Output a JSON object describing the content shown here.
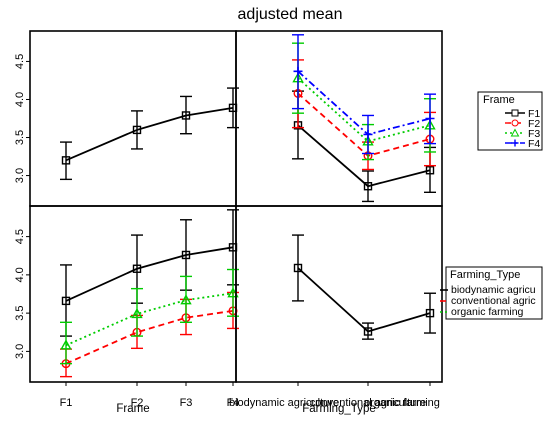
{
  "title": "adjusted mean",
  "colors": {
    "black": "#000000",
    "red": "#ff0000",
    "green": "#00cc00",
    "blue": "#0000ff"
  },
  "chart_data": [
    {
      "type": "line",
      "x": [
        "F1",
        "F2",
        "F3",
        "F4"
      ],
      "ylim": [
        2.6,
        4.9
      ],
      "yticks": [
        "3.0",
        "3.5",
        "4.0",
        "4.5"
      ],
      "series": [
        {
          "values": [
            3.2,
            3.6,
            3.79,
            3.89
          ],
          "lower": [
            2.95,
            3.35,
            3.55,
            3.63
          ],
          "upper": [
            3.44,
            3.85,
            4.04,
            4.15
          ],
          "color": "#000000",
          "marker": "square",
          "line": "solid"
        }
      ]
    },
    {
      "type": "line",
      "x": [
        "biodynamic agriculture",
        "conventional agriculture",
        "organic farming"
      ],
      "ylim": [
        2.6,
        4.9
      ],
      "legend": {
        "title": "Frame",
        "position": "right"
      },
      "series": [
        {
          "name": "F1",
          "values": [
            3.66,
            2.86,
            3.07
          ],
          "lower": [
            3.22,
            2.66,
            2.78
          ],
          "upper": [
            4.11,
            3.06,
            3.37
          ],
          "color": "#000000",
          "marker": "square",
          "line": "solid"
        },
        {
          "name": "F2",
          "values": [
            4.08,
            3.26,
            3.48
          ],
          "lower": [
            3.63,
            3.08,
            3.13
          ],
          "upper": [
            4.52,
            3.44,
            3.83
          ],
          "color": "#ff0000",
          "marker": "circle",
          "line": "dashed"
        },
        {
          "name": "F3",
          "values": [
            4.28,
            3.45,
            3.66
          ],
          "lower": [
            3.82,
            3.21,
            3.31
          ],
          "upper": [
            4.74,
            3.67,
            4.01
          ],
          "color": "#00cc00",
          "marker": "triangle",
          "line": "dotted"
        },
        {
          "name": "F4",
          "values": [
            4.37,
            3.54,
            3.75
          ],
          "lower": [
            3.88,
            3.29,
            3.42
          ],
          "upper": [
            4.85,
            3.79,
            4.07
          ],
          "color": "#0000ff",
          "marker": "plus",
          "line": "dotdash"
        }
      ]
    },
    {
      "type": "line",
      "x": [
        "F1",
        "F2",
        "F3",
        "F4"
      ],
      "xlabel": "Frame",
      "ylim": [
        2.6,
        4.9
      ],
      "yticks": [
        "3.0",
        "3.5",
        "4.0",
        "4.5"
      ],
      "series": [
        {
          "values": [
            3.66,
            4.08,
            4.26,
            4.36
          ],
          "lower": [
            3.2,
            3.63,
            3.8,
            3.87
          ],
          "upper": [
            4.13,
            4.52,
            4.72,
            4.85
          ],
          "color": "#000000",
          "marker": "square",
          "line": "solid"
        },
        {
          "values": [
            2.84,
            3.25,
            3.44,
            3.53
          ],
          "lower": [
            2.67,
            3.04,
            3.22,
            3.3
          ],
          "upper": [
            3.03,
            3.47,
            3.68,
            3.77
          ],
          "color": "#ff0000",
          "marker": "circle",
          "line": "dashed"
        },
        {
          "values": [
            3.08,
            3.49,
            3.67,
            3.76
          ],
          "lower": [
            2.84,
            3.2,
            3.38,
            3.46
          ],
          "upper": [
            3.38,
            3.82,
            3.98,
            4.07
          ],
          "color": "#00cc00",
          "marker": "triangle",
          "line": "dotted"
        }
      ]
    },
    {
      "type": "line",
      "x": [
        "biodynamic agriculture",
        "conventional agriculture",
        "organic farming"
      ],
      "xlabel": "Farming_Type",
      "ylim": [
        2.6,
        4.9
      ],
      "legend": {
        "title": "Farming_Type",
        "position": "right"
      },
      "legend_entries": [
        {
          "name": "biodynamic agricu",
          "color": "#000000",
          "line": "solid"
        },
        {
          "name": "conventional agric",
          "color": "#ff0000",
          "line": "dashed"
        },
        {
          "name": "organic farming",
          "color": "#00cc00",
          "line": "dotted"
        }
      ],
      "series": [
        {
          "values": [
            4.09,
            3.26,
            3.5
          ],
          "lower": [
            3.66,
            3.16,
            3.24
          ],
          "upper": [
            4.52,
            3.37,
            3.76
          ],
          "color": "#000000",
          "marker": "square",
          "line": "solid"
        }
      ]
    }
  ]
}
